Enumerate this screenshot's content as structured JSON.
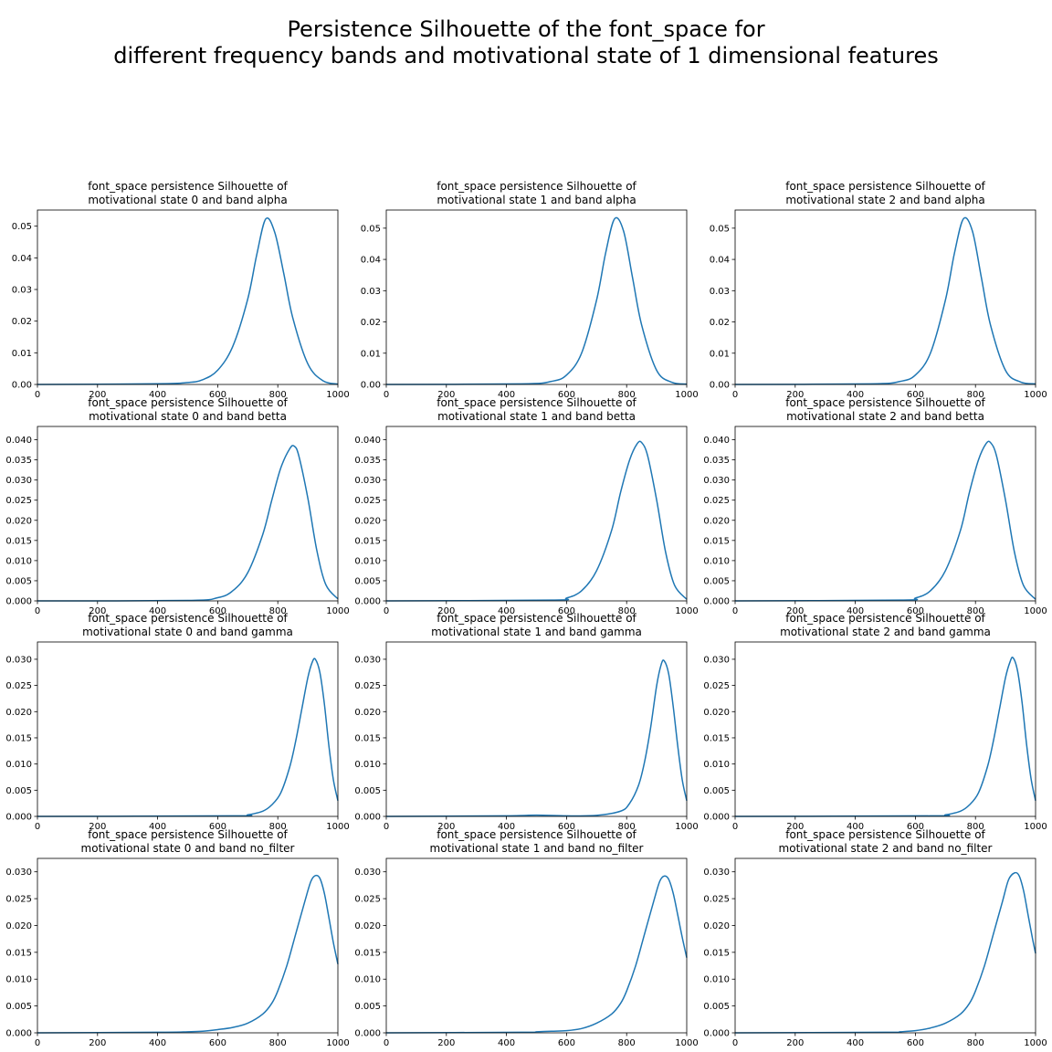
{
  "figure": {
    "title_line1": "Persistence Silhouette of the font_space for",
    "title_line2": "different frequency bands and motivational state of 1 dimensional features"
  },
  "colors": {
    "line": "#1f77b4",
    "axes": "#000000",
    "background": "#ffffff"
  },
  "chart_data": [
    {
      "type": "line",
      "title_line1": "font_space persistence Silhouette of",
      "title_line2": "motivational state 0 and band alpha",
      "xlim": [
        0,
        1000
      ],
      "ylim": [
        0,
        0.0551
      ],
      "xticks": [
        0,
        200,
        400,
        600,
        800,
        1000
      ],
      "xtick_labels": [
        "0",
        "200",
        "400",
        "600",
        "800",
        "1000"
      ],
      "yticks": [
        0,
        0.01,
        0.02,
        0.03,
        0.04,
        0.05
      ],
      "ytick_labels": [
        "0.00",
        "0.01",
        "0.02",
        "0.03",
        "0.04",
        "0.05"
      ],
      "grid": false,
      "x": [
        0,
        400,
        500,
        550,
        600,
        650,
        700,
        730,
        760,
        790,
        820,
        850,
        900,
        950,
        1000
      ],
      "y": [
        0,
        0.0002,
        0.0006,
        0.0015,
        0.0045,
        0.012,
        0.027,
        0.041,
        0.0523,
        0.048,
        0.035,
        0.021,
        0.0065,
        0.0012,
        0.0001
      ]
    },
    {
      "type": "line",
      "title_line1": "font_space persistence Silhouette of",
      "title_line2": "motivational state 1 and band alpha",
      "xlim": [
        0,
        1000
      ],
      "ylim": [
        0,
        0.0558
      ],
      "xticks": [
        0,
        200,
        400,
        600,
        800,
        1000
      ],
      "xtick_labels": [
        "0",
        "200",
        "400",
        "600",
        "800",
        "1000"
      ],
      "yticks": [
        0,
        0.01,
        0.02,
        0.03,
        0.04,
        0.05
      ],
      "ytick_labels": [
        "0.00",
        "0.01",
        "0.02",
        "0.03",
        "0.04",
        "0.05"
      ],
      "grid": false,
      "x": [
        0,
        450,
        550,
        600,
        650,
        700,
        730,
        760,
        790,
        820,
        850,
        900,
        950,
        1000
      ],
      "y": [
        0,
        0.0002,
        0.001,
        0.003,
        0.01,
        0.027,
        0.042,
        0.053,
        0.049,
        0.034,
        0.019,
        0.0045,
        0.0007,
        0.0001
      ]
    },
    {
      "type": "line",
      "title_line1": "font_space persistence Silhouette of",
      "title_line2": "motivational state 2 and band alpha",
      "xlim": [
        0,
        1000
      ],
      "ylim": [
        0,
        0.0558
      ],
      "xticks": [
        0,
        200,
        400,
        600,
        800,
        1000
      ],
      "xtick_labels": [
        "0",
        "200",
        "400",
        "600",
        "800",
        "1000"
      ],
      "yticks": [
        0,
        0.01,
        0.02,
        0.03,
        0.04,
        0.05
      ],
      "ytick_labels": [
        "0.00",
        "0.01",
        "0.02",
        "0.03",
        "0.04",
        "0.05"
      ],
      "grid": false,
      "x": [
        0,
        450,
        550,
        600,
        650,
        700,
        730,
        760,
        790,
        820,
        850,
        900,
        950,
        1000
      ],
      "y": [
        0,
        0.0002,
        0.001,
        0.003,
        0.01,
        0.027,
        0.042,
        0.053,
        0.049,
        0.034,
        0.019,
        0.0045,
        0.0008,
        0.0002
      ]
    },
    {
      "type": "line",
      "title_line1": "font_space persistence Silhouette of",
      "title_line2": "motivational state 0 and band betta",
      "xlim": [
        0,
        1000
      ],
      "ylim": [
        0,
        0.0433
      ],
      "xticks": [
        0,
        200,
        400,
        600,
        800,
        1000
      ],
      "xtick_labels": [
        "0",
        "200",
        "400",
        "600",
        "800",
        "1000"
      ],
      "yticks": [
        0,
        0.005,
        0.01,
        0.015,
        0.02,
        0.025,
        0.03,
        0.035,
        0.04
      ],
      "ytick_labels": [
        "0.000",
        "0.005",
        "0.010",
        "0.015",
        "0.020",
        "0.025",
        "0.030",
        "0.035",
        "0.040"
      ],
      "grid": false,
      "x": [
        0,
        500,
        600,
        650,
        700,
        750,
        780,
        810,
        840,
        855,
        870,
        900,
        930,
        960,
        1000
      ],
      "y": [
        0,
        0.0001,
        0.0008,
        0.0025,
        0.007,
        0.0165,
        0.025,
        0.033,
        0.0378,
        0.0384,
        0.036,
        0.0255,
        0.0125,
        0.004,
        0.0005
      ]
    },
    {
      "type": "line",
      "title_line1": "font_space persistence Silhouette of",
      "title_line2": "motivational state 1 and band betta",
      "xlim": [
        0,
        1000
      ],
      "ylim": [
        0,
        0.0433
      ],
      "xticks": [
        0,
        200,
        400,
        600,
        800,
        1000
      ],
      "xtick_labels": [
        "0",
        "200",
        "400",
        "600",
        "800",
        "1000"
      ],
      "yticks": [
        0,
        0.005,
        0.01,
        0.015,
        0.02,
        0.025,
        0.03,
        0.035,
        0.04
      ],
      "ytick_labels": [
        "0.000",
        "0.005",
        "0.010",
        "0.015",
        "0.020",
        "0.025",
        "0.030",
        "0.035",
        "0.040"
      ],
      "grid": false,
      "x": [
        0,
        550,
        600,
        650,
        700,
        750,
        780,
        810,
        835,
        850,
        870,
        900,
        930,
        960,
        1000
      ],
      "y": [
        0,
        0.0002,
        0.0007,
        0.0025,
        0.0075,
        0.0175,
        0.027,
        0.035,
        0.039,
        0.0393,
        0.036,
        0.025,
        0.012,
        0.0038,
        0.0004
      ]
    },
    {
      "type": "line",
      "title_line1": "font_space persistence Silhouette of",
      "title_line2": "motivational state 2 and band betta",
      "xlim": [
        0,
        1000
      ],
      "ylim": [
        0,
        0.0433
      ],
      "xticks": [
        0,
        200,
        400,
        600,
        800,
        1000
      ],
      "xtick_labels": [
        "0",
        "200",
        "400",
        "600",
        "800",
        "1000"
      ],
      "yticks": [
        0,
        0.005,
        0.01,
        0.015,
        0.02,
        0.025,
        0.03,
        0.035,
        0.04
      ],
      "ytick_labels": [
        "0.000",
        "0.005",
        "0.010",
        "0.015",
        "0.020",
        "0.025",
        "0.030",
        "0.035",
        "0.040"
      ],
      "grid": false,
      "x": [
        0,
        550,
        600,
        650,
        700,
        750,
        780,
        810,
        835,
        850,
        870,
        900,
        930,
        960,
        1000
      ],
      "y": [
        0,
        0.0002,
        0.0007,
        0.0025,
        0.0075,
        0.0175,
        0.027,
        0.035,
        0.039,
        0.0393,
        0.036,
        0.025,
        0.012,
        0.0038,
        0.0004
      ]
    },
    {
      "type": "line",
      "title_line1": "font_space persistence Silhouette of",
      "title_line2": "motivational state 0 and band gamma",
      "xlim": [
        0,
        1000
      ],
      "ylim": [
        0,
        0.0333
      ],
      "xticks": [
        0,
        200,
        400,
        600,
        800,
        1000
      ],
      "xtick_labels": [
        "0",
        "200",
        "400",
        "600",
        "800",
        "1000"
      ],
      "yticks": [
        0,
        0.005,
        0.01,
        0.015,
        0.02,
        0.025,
        0.03
      ],
      "ytick_labels": [
        "0.000",
        "0.005",
        "0.010",
        "0.015",
        "0.020",
        "0.025",
        "0.030"
      ],
      "grid": false,
      "x": [
        0,
        650,
        700,
        750,
        780,
        810,
        840,
        860,
        880,
        900,
        915,
        925,
        940,
        955,
        970,
        985,
        1000
      ],
      "y": [
        0,
        0.0001,
        0.0003,
        0.001,
        0.0022,
        0.0045,
        0.0095,
        0.0145,
        0.0205,
        0.0265,
        0.0295,
        0.03,
        0.0275,
        0.0215,
        0.0135,
        0.007,
        0.003
      ]
    },
    {
      "type": "line",
      "title_line1": "font_space persistence Silhouette of",
      "title_line2": "motivational state 1 and band gamma",
      "xlim": [
        0,
        1000
      ],
      "ylim": [
        0,
        0.0333
      ],
      "xticks": [
        0,
        200,
        400,
        600,
        800,
        1000
      ],
      "xtick_labels": [
        "0",
        "200",
        "400",
        "600",
        "800",
        "1000"
      ],
      "yticks": [
        0,
        0.005,
        0.01,
        0.015,
        0.02,
        0.025,
        0.03
      ],
      "ytick_labels": [
        "0.000",
        "0.005",
        "0.010",
        "0.015",
        "0.020",
        "0.025",
        "0.030"
      ],
      "grid": false,
      "x": [
        0,
        400,
        500,
        600,
        700,
        780,
        810,
        840,
        860,
        880,
        900,
        915,
        925,
        940,
        955,
        970,
        985,
        1000
      ],
      "y": [
        0,
        0.0001,
        0.00025,
        0.0001,
        0.0002,
        0.001,
        0.0025,
        0.006,
        0.0105,
        0.017,
        0.025,
        0.029,
        0.0297,
        0.0272,
        0.021,
        0.0135,
        0.007,
        0.003
      ]
    },
    {
      "type": "line",
      "title_line1": "font_space persistence Silhouette of",
      "title_line2": "motivational state 2 and band gamma",
      "xlim": [
        0,
        1000
      ],
      "ylim": [
        0,
        0.0333
      ],
      "xticks": [
        0,
        200,
        400,
        600,
        800,
        1000
      ],
      "xtick_labels": [
        "0",
        "200",
        "400",
        "600",
        "800",
        "1000"
      ],
      "yticks": [
        0,
        0.005,
        0.01,
        0.015,
        0.02,
        0.025,
        0.03
      ],
      "ytick_labels": [
        "0.000",
        "0.005",
        "0.010",
        "0.015",
        "0.020",
        "0.025",
        "0.030"
      ],
      "grid": false,
      "x": [
        0,
        650,
        700,
        750,
        780,
        810,
        840,
        860,
        880,
        900,
        915,
        925,
        940,
        955,
        970,
        985,
        1000
      ],
      "y": [
        0,
        0.0001,
        0.0003,
        0.001,
        0.0022,
        0.0045,
        0.0095,
        0.0145,
        0.0205,
        0.0265,
        0.0295,
        0.0303,
        0.0278,
        0.0218,
        0.0138,
        0.0072,
        0.003
      ]
    },
    {
      "type": "line",
      "title_line1": "font_space persistence Silhouette of",
      "title_line2": "motivational state 0 and band no_filter",
      "xlim": [
        0,
        1000
      ],
      "ylim": [
        0,
        0.0325
      ],
      "xticks": [
        0,
        200,
        400,
        600,
        800,
        1000
      ],
      "xtick_labels": [
        "0",
        "200",
        "400",
        "600",
        "800",
        "1000"
      ],
      "yticks": [
        0,
        0.005,
        0.01,
        0.015,
        0.02,
        0.025,
        0.03
      ],
      "ytick_labels": [
        "0.000",
        "0.005",
        "0.010",
        "0.015",
        "0.020",
        "0.025",
        "0.030"
      ],
      "grid": false,
      "x": [
        0,
        400,
        500,
        550,
        600,
        650,
        700,
        750,
        780,
        800,
        830,
        860,
        890,
        910,
        925,
        940,
        955,
        970,
        985,
        1000
      ],
      "y": [
        0,
        0.0001,
        0.0002,
        0.0003,
        0.0006,
        0.001,
        0.0018,
        0.0035,
        0.0055,
        0.0078,
        0.0125,
        0.0185,
        0.0245,
        0.0282,
        0.0293,
        0.0288,
        0.026,
        0.0215,
        0.0168,
        0.0128
      ]
    },
    {
      "type": "line",
      "title_line1": "font_space persistence Silhouette of",
      "title_line2": "motivational state 1 and band no_filter",
      "xlim": [
        0,
        1000
      ],
      "ylim": [
        0,
        0.0325
      ],
      "xticks": [
        0,
        200,
        400,
        600,
        800,
        1000
      ],
      "xtick_labels": [
        "0",
        "200",
        "400",
        "600",
        "800",
        "1000"
      ],
      "yticks": [
        0,
        0.005,
        0.01,
        0.015,
        0.02,
        0.025,
        0.03
      ],
      "ytick_labels": [
        "0.000",
        "0.005",
        "0.010",
        "0.015",
        "0.020",
        "0.025",
        "0.030"
      ],
      "grid": false,
      "x": [
        0,
        450,
        500,
        550,
        600,
        650,
        700,
        750,
        780,
        800,
        830,
        860,
        890,
        910,
        925,
        940,
        955,
        970,
        985,
        1000
      ],
      "y": [
        0,
        0.0001,
        0.0002,
        0.0003,
        0.0004,
        0.0008,
        0.0018,
        0.0035,
        0.0055,
        0.0078,
        0.0125,
        0.0185,
        0.0245,
        0.0282,
        0.0292,
        0.0286,
        0.026,
        0.022,
        0.0178,
        0.014
      ]
    },
    {
      "type": "line",
      "title_line1": "font_space persistence Silhouette of",
      "title_line2": "motivational state 2 and band no_filter",
      "xlim": [
        0,
        1000
      ],
      "ylim": [
        0,
        0.0325
      ],
      "xticks": [
        0,
        200,
        400,
        600,
        800,
        1000
      ],
      "xtick_labels": [
        "0",
        "200",
        "400",
        "600",
        "800",
        "1000"
      ],
      "yticks": [
        0,
        0.005,
        0.01,
        0.015,
        0.02,
        0.025,
        0.03
      ],
      "ytick_labels": [
        "0.000",
        "0.005",
        "0.010",
        "0.015",
        "0.020",
        "0.025",
        "0.030"
      ],
      "grid": false,
      "x": [
        0,
        500,
        550,
        600,
        650,
        700,
        750,
        780,
        800,
        830,
        860,
        890,
        910,
        930,
        945,
        960,
        975,
        990,
        1000
      ],
      "y": [
        0,
        0.0001,
        0.0002,
        0.0004,
        0.0009,
        0.0018,
        0.0035,
        0.0055,
        0.0078,
        0.0125,
        0.0185,
        0.0245,
        0.0285,
        0.0298,
        0.0293,
        0.0265,
        0.022,
        0.0175,
        0.0148
      ]
    }
  ]
}
